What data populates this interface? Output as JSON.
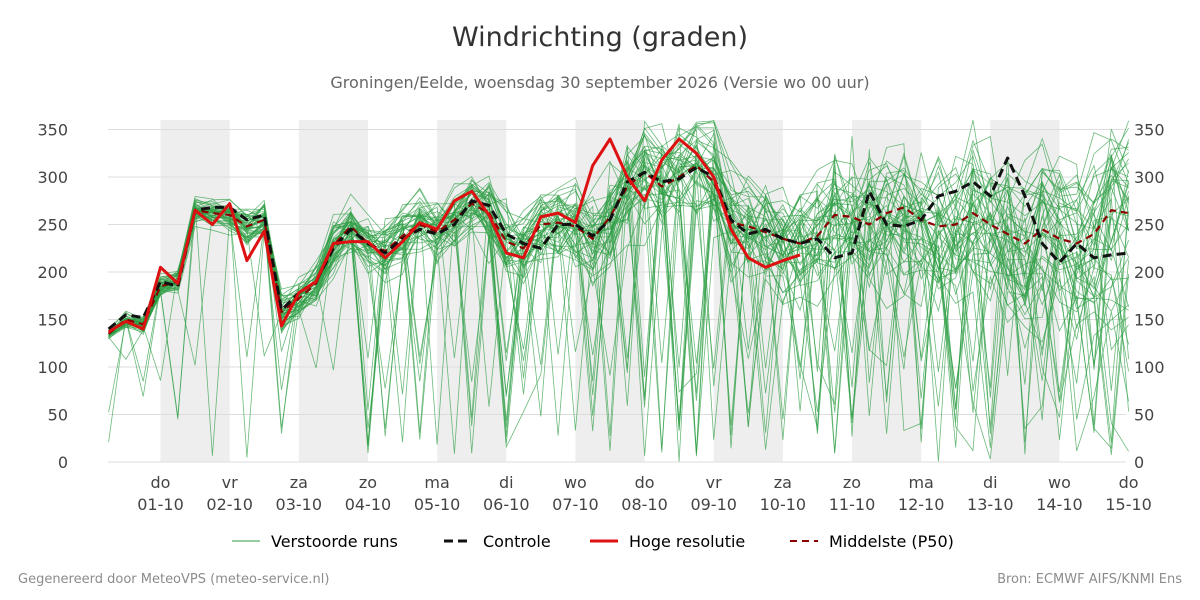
{
  "header": {
    "title": "Windrichting (graden)",
    "subtitle": "Groningen/Eelde, woensdag 30 september 2026 (Versie wo 00 uur)"
  },
  "footer": {
    "left": "Gegenereerd door MeteoVPS (meteo-service.nl)",
    "right": "Bron: ECMWF AIFS/KNMI Ens"
  },
  "colors": {
    "ensemble": "#2e9e44",
    "control": "#111111",
    "hires": "#dd1111",
    "median": "#8b0000",
    "weekend_band": "#eeeeee",
    "grid": "#dddddd"
  },
  "chart_data": {
    "type": "line",
    "title": "Windrichting (graden)",
    "ylim": [
      0,
      360
    ],
    "yticks": [
      0,
      50,
      100,
      150,
      200,
      250,
      300,
      350
    ],
    "xlim": [
      -0.75,
      14
    ],
    "x_unit": "days from 01-10",
    "grid": "horizontal",
    "legend_position": "bottom",
    "x_ticks": [
      {
        "day": "do",
        "date": "01-10"
      },
      {
        "day": "vr",
        "date": "02-10"
      },
      {
        "day": "za",
        "date": "03-10"
      },
      {
        "day": "zo",
        "date": "04-10"
      },
      {
        "day": "ma",
        "date": "05-10"
      },
      {
        "day": "di",
        "date": "06-10"
      },
      {
        "day": "wo",
        "date": "07-10"
      },
      {
        "day": "do",
        "date": "08-10"
      },
      {
        "day": "vr",
        "date": "09-10"
      },
      {
        "day": "za",
        "date": "10-10"
      },
      {
        "day": "zo",
        "date": "11-10"
      },
      {
        "day": "ma",
        "date": "12-10"
      },
      {
        "day": "di",
        "date": "13-10"
      },
      {
        "day": "wo",
        "date": "14-10"
      },
      {
        "day": "do",
        "date": "15-10"
      }
    ],
    "shaded_days": [
      [
        0,
        1
      ],
      [
        2,
        3
      ],
      [
        4,
        5
      ],
      [
        6,
        7
      ],
      [
        8,
        9
      ],
      [
        10,
        11
      ],
      [
        12,
        13
      ]
    ],
    "legend": [
      {
        "label": "Verstoorde runs",
        "style": "thin"
      },
      {
        "label": "Controle",
        "style": "dashed-bold"
      },
      {
        "label": "Hoge resolutie",
        "style": "solid-bold"
      },
      {
        "label": "Middelste (P50)",
        "style": "dashed"
      }
    ],
    "series": [
      {
        "name": "Controle",
        "x": [
          -0.75,
          -0.5,
          -0.25,
          0,
          0.25,
          0.5,
          0.75,
          1,
          1.25,
          1.5,
          1.75,
          2,
          2.25,
          2.5,
          2.75,
          3,
          3.25,
          3.5,
          3.75,
          4,
          4.25,
          4.5,
          4.75,
          5,
          5.25,
          5.5,
          5.75,
          6,
          6.25,
          6.5,
          6.75,
          7,
          7.25,
          7.5,
          7.75,
          8,
          8.25,
          8.5,
          8.75,
          9,
          9.25,
          9.5,
          9.75,
          10,
          10.25,
          10.5,
          10.75,
          11,
          11.25,
          11.5,
          11.75,
          12,
          12.25,
          12.5,
          12.75,
          13,
          13.25,
          13.5,
          13.75,
          14
        ],
        "values": [
          140,
          155,
          152,
          190,
          185,
          265,
          268,
          268,
          255,
          260,
          160,
          178,
          190,
          225,
          245,
          230,
          220,
          235,
          245,
          240,
          250,
          275,
          270,
          240,
          230,
          225,
          250,
          250,
          238,
          255,
          295,
          305,
          295,
          298,
          310,
          300,
          255,
          240,
          245,
          235,
          230,
          235,
          215,
          220,
          285,
          250,
          248,
          255,
          280,
          285,
          295,
          280,
          320,
          280,
          230,
          210,
          230,
          215,
          218,
          220
        ]
      },
      {
        "name": "Hoge resolutie",
        "x": [
          -0.75,
          -0.5,
          -0.25,
          0,
          0.25,
          0.5,
          0.75,
          1,
          1.25,
          1.5,
          1.75,
          2,
          2.25,
          2.5,
          2.75,
          3,
          3.25,
          3.5,
          3.75,
          4,
          4.25,
          4.5,
          4.75,
          5,
          5.25,
          5.5,
          5.75,
          6,
          6.25,
          6.5,
          6.75,
          7,
          7.25,
          7.5,
          7.75,
          8,
          8.25,
          8.5,
          8.75,
          9,
          9.25
        ],
        "values": [
          137,
          148,
          140,
          205,
          188,
          265,
          250,
          272,
          212,
          243,
          143,
          178,
          190,
          230,
          232,
          232,
          215,
          232,
          252,
          245,
          275,
          285,
          260,
          220,
          215,
          258,
          262,
          252,
          312,
          340,
          300,
          275,
          318,
          340,
          325,
          300,
          245,
          215,
          205,
          212,
          218
        ]
      },
      {
        "name": "Middelste (P50)",
        "x": [
          -0.75,
          -0.5,
          -0.25,
          0,
          0.25,
          0.5,
          0.75,
          1,
          1.25,
          1.5,
          1.75,
          2,
          2.25,
          2.5,
          2.75,
          3,
          3.25,
          3.5,
          3.75,
          4,
          4.25,
          4.5,
          4.75,
          5,
          5.25,
          5.5,
          5.75,
          6,
          6.25,
          6.5,
          6.75,
          7,
          7.25,
          7.5,
          7.75,
          8,
          8.25,
          8.5,
          8.75,
          9,
          9.25,
          9.5,
          9.75,
          10,
          10.25,
          10.5,
          10.75,
          11,
          11.25,
          11.5,
          11.75,
          12,
          12.25,
          12.5,
          12.75,
          13,
          13.25,
          13.5,
          13.75,
          14
        ],
        "values": [
          135,
          150,
          145,
          185,
          190,
          265,
          262,
          260,
          248,
          255,
          158,
          172,
          188,
          228,
          248,
          230,
          222,
          238,
          250,
          242,
          255,
          272,
          262,
          232,
          225,
          250,
          252,
          248,
          235,
          258,
          290,
          305,
          290,
          300,
          312,
          295,
          252,
          248,
          242,
          235,
          230,
          238,
          260,
          258,
          250,
          262,
          268,
          255,
          248,
          250,
          262,
          250,
          240,
          230,
          245,
          235,
          230,
          240,
          265,
          262
        ]
      }
    ]
  }
}
